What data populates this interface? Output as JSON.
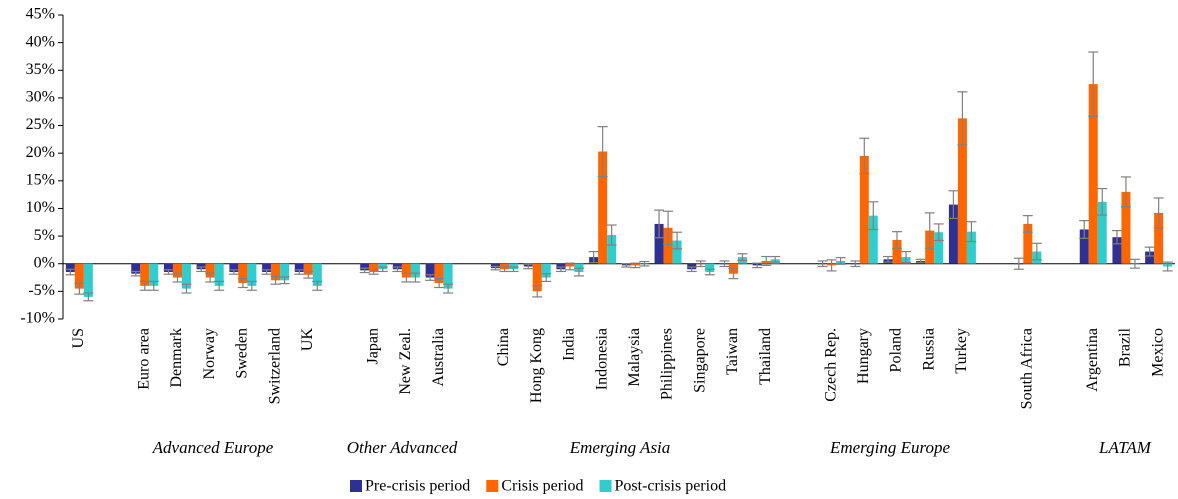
{
  "chart_data": {
    "type": "bar",
    "categories": [
      "US",
      null,
      "Euro area",
      "Denmark",
      "Norway",
      "Sweden",
      "Switzerland",
      "UK",
      null,
      "Japan",
      "New Zeal.",
      "Australia",
      null,
      "China",
      "Hong Kong",
      "India",
      "Indonesia",
      "Malaysia",
      "Philippines",
      "Singapore",
      "Taiwan",
      "Thailand",
      null,
      "Czech Rep.",
      "Hungary",
      "Poland",
      "Russia",
      "Turkey",
      null,
      "South Africa",
      null,
      "Argentina",
      "Brazil",
      "Mexico"
    ],
    "group_labels": [
      "Advanced Europe",
      "Other Advanced",
      "Emerging Asia",
      "Emerging Europe",
      "LATAM"
    ],
    "series": [
      {
        "name": "Pre-crisis period",
        "color": "#2e3192",
        "values": [
          -1.5,
          null,
          -1.8,
          -1.5,
          -1,
          -1.5,
          -1.5,
          -1.5,
          null,
          -1.2,
          -1,
          -2.5,
          null,
          -0.8,
          -0.5,
          -1,
          1.2,
          -0.3,
          7.2,
          -1,
          0,
          -0.3,
          null,
          0,
          0,
          0.8,
          0.5,
          10.7,
          null,
          0,
          null,
          6.2,
          4.8,
          2.2
        ],
        "errors": [
          0.5,
          null,
          0.4,
          0.4,
          0.4,
          0.4,
          0.4,
          0.4,
          null,
          0.4,
          0.4,
          0.5,
          null,
          0.3,
          0.4,
          0.4,
          1,
          0.3,
          2.5,
          0.4,
          0.5,
          0.4,
          null,
          0.5,
          0.5,
          0.5,
          0.3,
          2.5,
          null,
          1,
          null,
          1.6,
          1.2,
          0.8
        ]
      },
      {
        "name": "Crisis period",
        "color": "#ff6600",
        "values": [
          -4.5,
          null,
          -4,
          -2.5,
          -2.5,
          -3.5,
          -3,
          -2,
          null,
          -1.5,
          -2.5,
          -3.5,
          null,
          -1,
          -5,
          -0.5,
          20.3,
          -0.3,
          6.5,
          0,
          -1.8,
          0.5,
          null,
          -0.3,
          19.5,
          4.3,
          6,
          26.3,
          null,
          7.2,
          null,
          32.5,
          13,
          9.2
        ],
        "errors": [
          1,
          null,
          0.8,
          0.8,
          0.8,
          0.8,
          0.7,
          0.6,
          null,
          0.4,
          0.8,
          0.8,
          null,
          0.4,
          1,
          0.6,
          4.5,
          0.4,
          3,
          0.5,
          0.9,
          0.8,
          null,
          1,
          3.2,
          1.5,
          3.2,
          4.8,
          null,
          1.5,
          null,
          5.8,
          2.7,
          2.7
        ]
      },
      {
        "name": "Post-crisis period",
        "color": "#33cccc",
        "values": [
          -6,
          null,
          -4,
          -4.5,
          -4,
          -4,
          -3,
          -4,
          null,
          -1,
          -2.5,
          -4.5,
          null,
          -1,
          -2.5,
          -1.5,
          5.2,
          0,
          4.2,
          -1.5,
          1.2,
          0.8,
          null,
          0.5,
          8.7,
          1.2,
          5.7,
          5.8,
          null,
          2.2,
          null,
          11.2,
          0,
          -0.5
        ],
        "errors": [
          0.7,
          null,
          0.8,
          0.8,
          0.8,
          0.8,
          0.6,
          0.8,
          null,
          0.4,
          0.8,
          0.8,
          null,
          0.4,
          0.7,
          0.7,
          1.8,
          0.4,
          1.5,
          0.5,
          0.6,
          0.5,
          null,
          0.6,
          2.5,
          1,
          1.5,
          1.8,
          null,
          1.5,
          null,
          2.4,
          0.8,
          0.8
        ]
      }
    ],
    "ylim": [
      -10,
      45
    ],
    "yticks": [
      {
        "value": -10,
        "label": "-10%"
      },
      {
        "value": -5,
        "label": "-5%"
      },
      {
        "value": 0,
        "label": "0%"
      },
      {
        "value": 5,
        "label": "5%"
      },
      {
        "value": 10,
        "label": "10%"
      },
      {
        "value": 15,
        "label": "15%"
      },
      {
        "value": 20,
        "label": "20%"
      },
      {
        "value": 25,
        "label": "25%"
      },
      {
        "value": 30,
        "label": "30%"
      },
      {
        "value": 35,
        "label": "35%"
      },
      {
        "value": 40,
        "label": "40%"
      },
      {
        "value": 45,
        "label": "45%"
      }
    ],
    "grid": false
  }
}
